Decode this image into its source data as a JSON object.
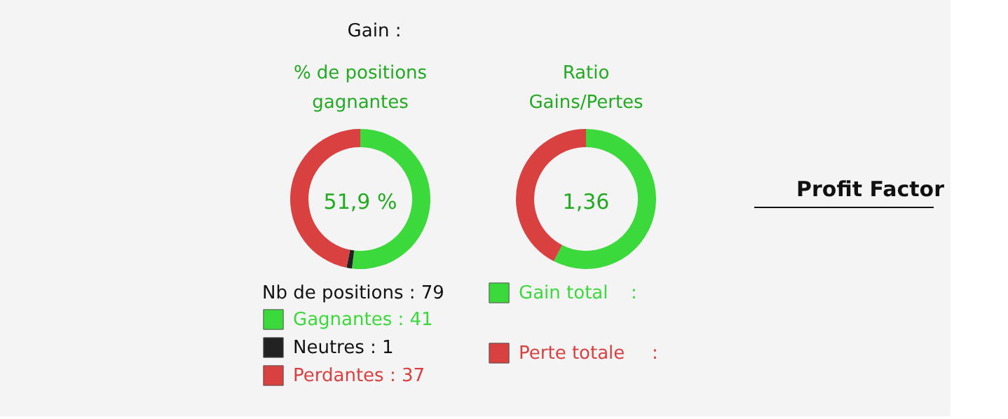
{
  "chart_data": [
    {
      "type": "donut",
      "title": "% de positions gagnantes",
      "categories": [
        "Gagnantes : 41",
        "Neutres : 1",
        "Perdantes : 37"
      ],
      "values": [
        41,
        1,
        37
      ],
      "colors": [
        "#3cd93c",
        "#222222",
        "#d94040"
      ],
      "legend": "bottom",
      "annotations": [
        "Gain :",
        "Nb de positions : 79",
        "51,9 %"
      ]
    },
    {
      "type": "donut",
      "title": "Ratio Gains/Pertes",
      "categories": [
        "Gain total",
        "Perte totale"
      ],
      "values": [
        57.6,
        42.4
      ],
      "colors": [
        "#3cd93c",
        "#d94040"
      ],
      "legend": "bottom",
      "annotations": [
        "Profit Factor",
        ":",
        ":",
        "1,36"
      ]
    }
  ]
}
